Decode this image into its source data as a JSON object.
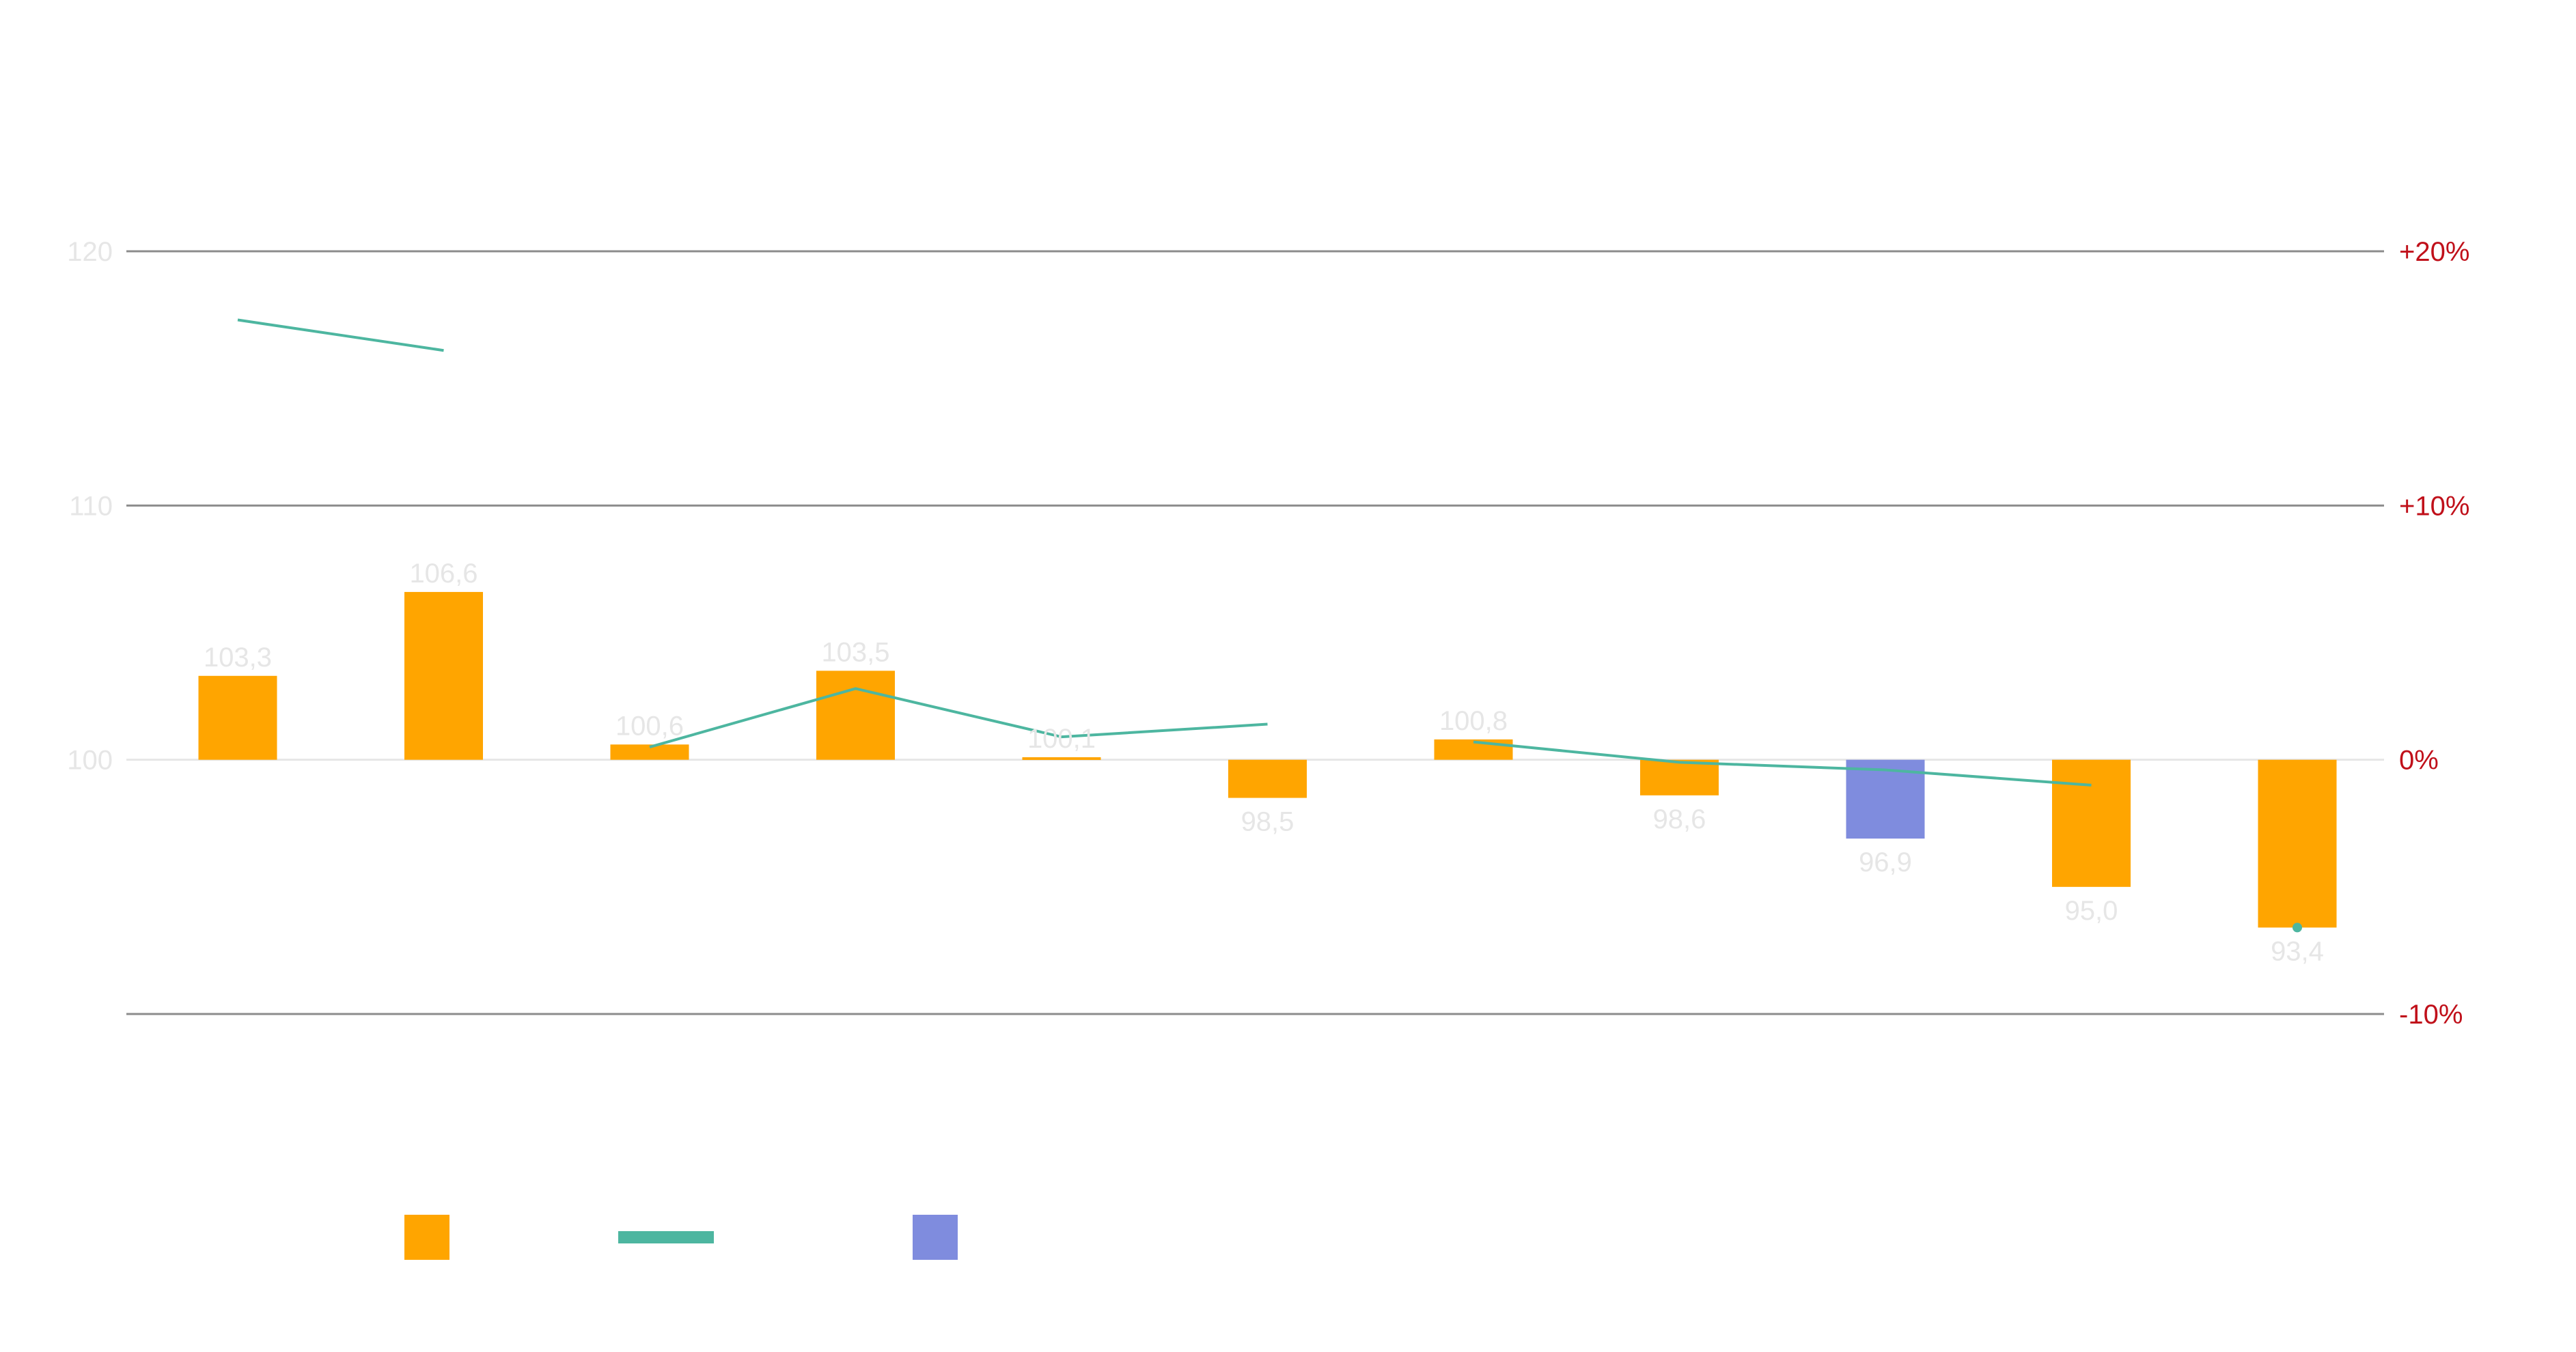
{
  "chart_data": {
    "type": "bar",
    "categories": [
      "",
      "",
      "",
      "",
      "",
      "",
      "",
      "",
      "",
      "",
      ""
    ],
    "series": [
      {
        "kind": "bar",
        "axis": "left",
        "values": [
          103.3,
          106.6,
          100.6,
          103.5,
          100.1,
          98.5,
          100.8,
          98.6,
          96.9,
          95.0,
          93.4
        ],
        "labels": [
          "103,3",
          "106,6",
          "100,6",
          "103,5",
          "100,1",
          "98,5",
          "100,8",
          "98,6",
          "96,9",
          "95,0",
          "93,4"
        ],
        "highlight_index": 8
      },
      {
        "kind": "line",
        "axis": "right",
        "segments": [
          {
            "x_index": [
              0,
              1
            ],
            "values": [
              17.3,
              16.1
            ]
          },
          {
            "x_index": [
              2,
              3,
              4,
              5
            ],
            "values": [
              0.5,
              2.8,
              0.9,
              1.4
            ]
          },
          {
            "x_index": [
              6,
              7,
              8,
              9
            ],
            "values": [
              0.7,
              -0.1,
              -0.4,
              -1.0
            ]
          },
          {
            "x_index": [
              10
            ],
            "values": [
              -6.6
            ]
          }
        ]
      }
    ],
    "y_left": {
      "ticks": [
        100,
        110,
        120
      ],
      "tick_labels": [
        "100",
        "110",
        "120"
      ],
      "ylim": [
        90,
        120
      ],
      "baseline": 100
    },
    "y_right": {
      "ticks": [
        -10,
        0,
        10,
        20
      ],
      "tick_labels": [
        "-10%",
        "0%",
        "+10%",
        "+20%"
      ],
      "ylim": [
        -10,
        20
      ]
    },
    "legend": {
      "placement": "bottom-left",
      "items": [
        {
          "kind": "bar",
          "color": "#FFA500"
        },
        {
          "kind": "line",
          "color": "#4DB6A0"
        },
        {
          "kind": "bar",
          "color": "#7F8CDE"
        }
      ]
    },
    "colors": {
      "bar": "#FFA500",
      "highlight": "#7F8CDE",
      "line": "#4DB6A0",
      "right_axis": "#C0101A",
      "left_axis": "#E6E6E6",
      "grid": "#8C8C8C",
      "baseline": "#E6E6E6"
    },
    "grid": true
  }
}
